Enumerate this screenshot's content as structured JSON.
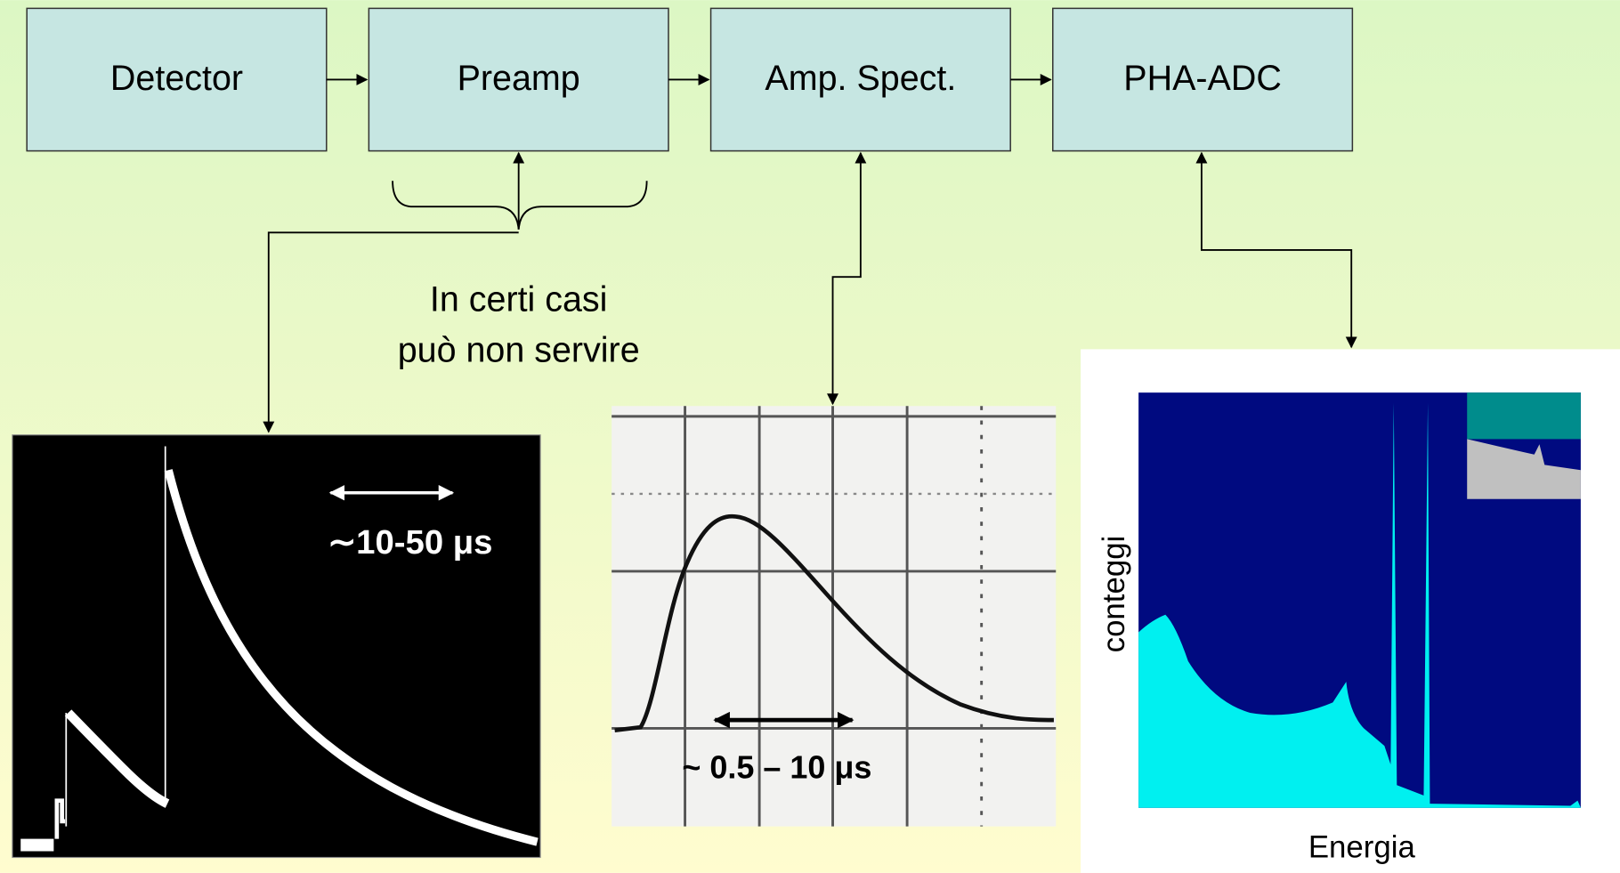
{
  "nodes": [
    {
      "label": "Detector"
    },
    {
      "label": "Preamp"
    },
    {
      "label": "Amp. Spect."
    },
    {
      "label": "PHA-ADC"
    }
  ],
  "note": {
    "lines": [
      "In certi casi",
      "può non servire"
    ]
  },
  "panels": {
    "preamp_signal": {
      "label": "∼10-50 μs"
    },
    "shaped_signal": {
      "label": "~ 0.5 – 10 μs"
    },
    "spectrum": {
      "y_label": "conteggi",
      "x_label": "Energia"
    }
  }
}
